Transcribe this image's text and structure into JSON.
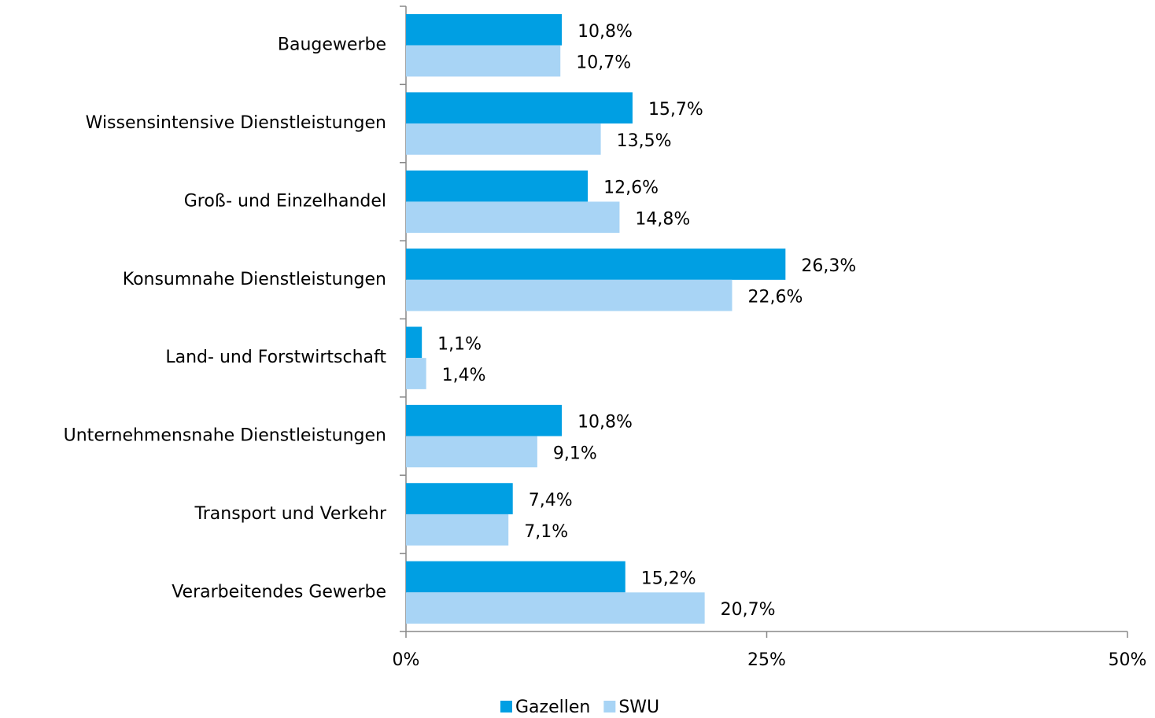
{
  "chart_data": {
    "type": "hbar",
    "categories": [
      "Baugewerbe",
      "Wissensintensive Dienstleistungen",
      "Groß- und Einzelhandel",
      "Konsumnahe Dienstleistungen",
      "Land- und Forstwirtschaft",
      "Unternehmensnahe Dienstleistungen",
      "Transport und Verkehr",
      "Verarbeitendes Gewerbe"
    ],
    "series": [
      {
        "name": "Gazellen",
        "color": "#009fe3",
        "values": [
          10.8,
          15.7,
          12.6,
          26.3,
          1.1,
          10.8,
          7.4,
          15.2
        ],
        "value_labels": [
          "10,8%",
          "15,7%",
          "12,6%",
          "26,3%",
          "1,1%",
          "10,8%",
          "7,4%",
          "15,2%"
        ]
      },
      {
        "name": "SWU",
        "color": "#a8d4f5",
        "values": [
          10.7,
          13.5,
          14.8,
          22.6,
          1.4,
          9.1,
          7.1,
          20.7
        ],
        "value_labels": [
          "10,7%",
          "13,5%",
          "14,8%",
          "22,6%",
          "1,4%",
          "9,1%",
          "7,1%",
          "20,7%"
        ]
      }
    ],
    "xlim": [
      0,
      50
    ],
    "xticks": [
      {
        "value": 0,
        "label": "0%"
      },
      {
        "value": 25,
        "label": "25%"
      },
      {
        "value": 50,
        "label": "50%"
      }
    ],
    "grid": false,
    "legend": "bottom"
  }
}
